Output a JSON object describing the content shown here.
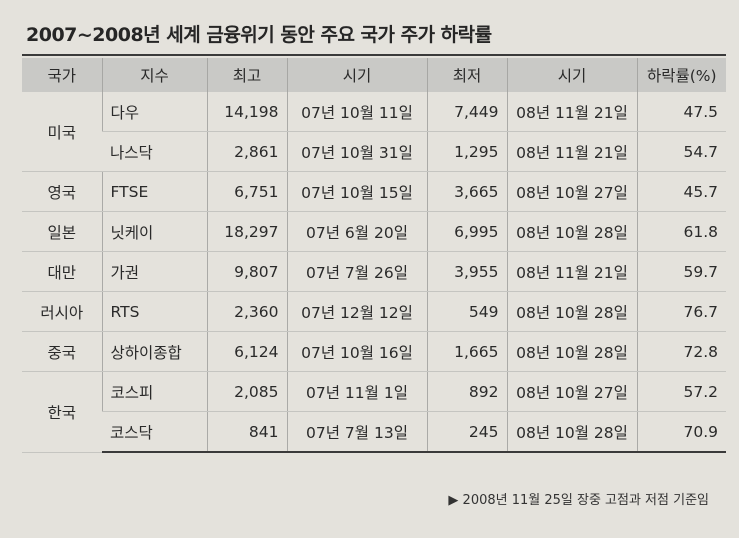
{
  "title": "2007~2008년 세계 금융위기 동안 주요 국가 주가 하락률",
  "headers": [
    "국가",
    "지수",
    "최고",
    "시기",
    "최저",
    "시기",
    "하락률(%)"
  ],
  "groups": [
    {
      "country": "미국",
      "rows": [
        {
          "index": "다우",
          "high": "14,198",
          "high_date": "07년 10월 11일",
          "low": "7,449",
          "low_date": "08년 11월 21일",
          "drop": "47.5"
        },
        {
          "index": "나스닥",
          "high": "2,861",
          "high_date": "07년 10월 31일",
          "low": "1,295",
          "low_date": "08년 11월 21일",
          "drop": "54.7"
        }
      ]
    },
    {
      "country": "영국",
      "rows": [
        {
          "index": "FTSE",
          "high": "6,751",
          "high_date": "07년 10월 15일",
          "low": "3,665",
          "low_date": "08년 10월 27일",
          "drop": "45.7"
        }
      ]
    },
    {
      "country": "일본",
      "rows": [
        {
          "index": "닛케이",
          "high": "18,297",
          "high_date": "07년 6월 20일",
          "low": "6,995",
          "low_date": "08년 10월 28일",
          "drop": "61.8"
        }
      ]
    },
    {
      "country": "대만",
      "rows": [
        {
          "index": "가권",
          "high": "9,807",
          "high_date": "07년 7월 26일",
          "low": "3,955",
          "low_date": "08년 11월 21일",
          "drop": "59.7"
        }
      ]
    },
    {
      "country": "러시아",
      "rows": [
        {
          "index": "RTS",
          "high": "2,360",
          "high_date": "07년 12월 12일",
          "low": "549",
          "low_date": "08년 10월 28일",
          "drop": "76.7"
        }
      ]
    },
    {
      "country": "중국",
      "rows": [
        {
          "index": "상하이종합",
          "high": "6,124",
          "high_date": "07년 10월 16일",
          "low": "1,665",
          "low_date": "08년 10월 28일",
          "drop": "72.8"
        }
      ]
    },
    {
      "country": "한국",
      "rows": [
        {
          "index": "코스피",
          "high": "2,085",
          "high_date": "07년 11월 1일",
          "low": "892",
          "low_date": "08년 10월 27일",
          "drop": "57.2"
        },
        {
          "index": "코스닥",
          "high": "841",
          "high_date": "07년 7월 13일",
          "low": "245",
          "low_date": "08년 10월 28일",
          "drop": "70.9"
        }
      ]
    }
  ],
  "footnote": "▶ 2008년 11월 25일 장중 고점과 저점 기준임"
}
